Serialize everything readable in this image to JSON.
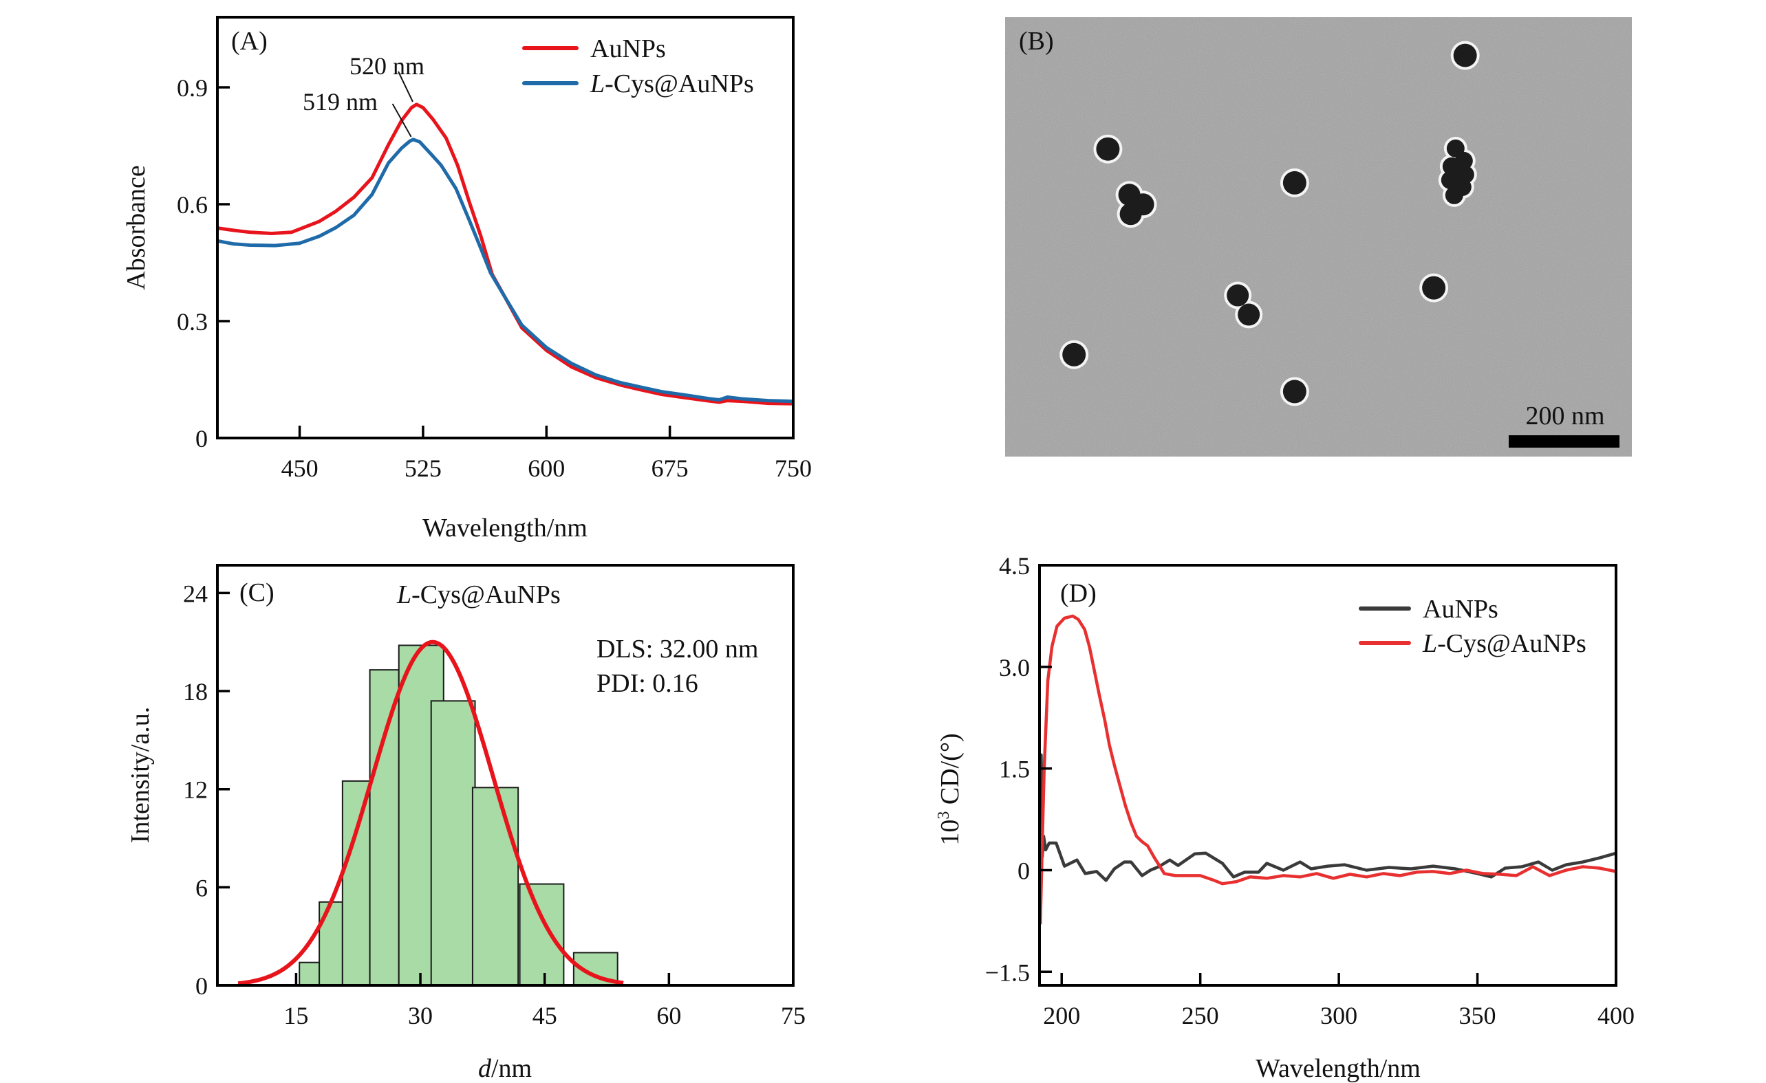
{
  "figure": {
    "panels": [
      "A",
      "B",
      "C",
      "D"
    ]
  },
  "chart_data": [
    {
      "id": "A",
      "type": "line",
      "panel_tag": "(A)",
      "title": "",
      "xlabel": "Wavelength/nm",
      "ylabel": "Absorbance",
      "xlim": [
        400,
        750
      ],
      "ylim": [
        0,
        1.08
      ],
      "xticks": [
        450,
        525,
        600,
        675,
        750
      ],
      "xtick_labels": [
        "450",
        "525",
        "600",
        "675",
        "750"
      ],
      "yticks": [
        0,
        0.3,
        0.6,
        0.9
      ],
      "ytick_labels": [
        "0",
        "0.3",
        "0.6",
        "0.9"
      ],
      "grid": false,
      "legend_position": "top-right",
      "series": [
        {
          "name": "AuNPs",
          "name_italic_prefix": "",
          "name_rest": "AuNPs",
          "color": "#e8141c",
          "x": [
            400,
            410,
            420,
            433,
            445,
            462,
            472,
            483,
            494,
            504,
            512,
            518,
            521,
            525,
            531,
            539,
            546,
            553,
            560,
            567,
            575,
            585,
            600,
            615,
            630,
            645,
            657,
            670,
            685,
            699,
            705,
            710,
            720,
            735,
            750
          ],
          "y": [
            0.539,
            0.533,
            0.528,
            0.525,
            0.528,
            0.556,
            0.582,
            0.618,
            0.668,
            0.753,
            0.815,
            0.848,
            0.856,
            0.848,
            0.818,
            0.77,
            0.7,
            0.607,
            0.52,
            0.42,
            0.36,
            0.283,
            0.225,
            0.183,
            0.155,
            0.136,
            0.124,
            0.112,
            0.103,
            0.095,
            0.092,
            0.096,
            0.094,
            0.089,
            0.088
          ]
        },
        {
          "name": "L-Cys@AuNPs",
          "name_italic_prefix": "L",
          "name_rest": "-Cys@AuNPs",
          "color": "#1f6aa8",
          "x": [
            400,
            410,
            420,
            435,
            450,
            462,
            472,
            483,
            494,
            504,
            512,
            517,
            519,
            523,
            530,
            536,
            545,
            553,
            560,
            566,
            575,
            585,
            600,
            615,
            630,
            645,
            657,
            670,
            685,
            699,
            705,
            710,
            720,
            735,
            750
          ],
          "y": [
            0.506,
            0.498,
            0.495,
            0.494,
            0.5,
            0.518,
            0.54,
            0.572,
            0.625,
            0.706,
            0.744,
            0.762,
            0.766,
            0.76,
            0.728,
            0.7,
            0.64,
            0.56,
            0.488,
            0.424,
            0.36,
            0.29,
            0.232,
            0.192,
            0.162,
            0.142,
            0.131,
            0.119,
            0.11,
            0.101,
            0.098,
            0.105,
            0.1,
            0.096,
            0.094
          ]
        }
      ],
      "annotations": [
        {
          "text": "520 nm",
          "x": 520,
          "y": 0.856
        },
        {
          "text": "519 nm",
          "x": 519,
          "y": 0.766
        }
      ]
    },
    {
      "id": "B",
      "type": "image",
      "panel_tag": "(B)",
      "description": "TEM micrograph of nanoparticles",
      "scale_bar_label": "200 nm",
      "particles": [
        {
          "fx": 0.164,
          "fy": 0.3,
          "count": 1
        },
        {
          "fx": 0.734,
          "fy": 0.087,
          "count": 1
        },
        {
          "fx": 0.462,
          "fy": 0.377,
          "count": 1
        },
        {
          "fx": 0.207,
          "fy": 0.423,
          "count": 3
        },
        {
          "fx": 0.721,
          "fy": 0.352,
          "count": 7
        },
        {
          "fx": 0.38,
          "fy": 0.655,
          "count": 2
        },
        {
          "fx": 0.684,
          "fy": 0.616,
          "count": 1
        },
        {
          "fx": 0.11,
          "fy": 0.768,
          "count": 1
        },
        {
          "fx": 0.462,
          "fy": 0.852,
          "count": 1
        }
      ]
    },
    {
      "id": "C",
      "type": "bar",
      "panel_tag": "(C)",
      "title": "L-Cys@AuNPs",
      "title_italic_prefix": "L",
      "title_rest": "-Cys@AuNPs",
      "xlabel_italic": "d",
      "xlabel_rest": "/nm",
      "ylabel": "Intensity/a.u.",
      "xlim": [
        5.5,
        75
      ],
      "ylim": [
        0,
        25.7
      ],
      "xticks": [
        15,
        30,
        45,
        60,
        75
      ],
      "xtick_labels": [
        "15",
        "30",
        "45",
        "60",
        "75"
      ],
      "yticks": [
        0,
        6,
        12,
        18,
        24
      ],
      "ytick_labels": [
        "0",
        "6",
        "12",
        "18",
        "24"
      ],
      "grid": false,
      "bar_color": "#a8dba6",
      "bar_edge_color": "#1a1a1a",
      "bins": [
        {
          "x0": 15.4,
          "x1": 17.8,
          "value": 1.4
        },
        {
          "x0": 17.8,
          "x1": 20.6,
          "value": 5.1
        },
        {
          "x0": 20.6,
          "x1": 23.9,
          "value": 12.5
        },
        {
          "x0": 23.9,
          "x1": 27.4,
          "value": 19.3
        },
        {
          "x0": 27.4,
          "x1": 32.8,
          "value": 20.8
        },
        {
          "x0": 31.3,
          "x1": 36.6,
          "value": 17.4
        },
        {
          "x0": 36.3,
          "x1": 41.8,
          "value": 12.1
        },
        {
          "x0": 42.0,
          "x1": 47.3,
          "value": 6.2
        },
        {
          "x0": 48.5,
          "x1": 53.8,
          "value": 2.0
        }
      ],
      "fit": {
        "type": "gaussian",
        "color": "#e8141c",
        "mean": 31.5,
        "sigma": 7.3,
        "amplitude": 21.0,
        "x_range": [
          8,
          54.5
        ]
      },
      "text_lines": [
        "DLS: 32.00 nm",
        "PDI: 0.16"
      ]
    },
    {
      "id": "D",
      "type": "line",
      "panel_tag": "(D)",
      "xlabel": "Wavelength/nm",
      "ylabel_prefix": "10",
      "ylabel_sup": "3",
      "ylabel_rest": " CD/(°)",
      "xlim": [
        192,
        400
      ],
      "ylim": [
        -1.7,
        4.5
      ],
      "xticks": [
        200,
        250,
        300,
        350,
        400
      ],
      "xtick_labels": [
        "200",
        "250",
        "300",
        "350",
        "400"
      ],
      "yticks": [
        -1.5,
        0,
        1.5,
        3.0,
        4.5
      ],
      "ytick_labels": [
        "−1.5",
        "0",
        "1.5",
        "3.0",
        "4.5"
      ],
      "grid": false,
      "legend_position": "top-right",
      "series": [
        {
          "name": "AuNPs",
          "name_italic_prefix": "",
          "name_rest": "AuNPs",
          "color": "#3a3a3a",
          "x": [
            192.2,
            192.6,
            193.0,
            193.5,
            194.2,
            195.5,
            198,
            201,
            205.5,
            208.5,
            212.6,
            216,
            219,
            222.6,
            225,
            229,
            232,
            235,
            239,
            242,
            248,
            252,
            258,
            262,
            266,
            271,
            274,
            280,
            286,
            290,
            296,
            302,
            310,
            318,
            326,
            334,
            342,
            350,
            355,
            360,
            366,
            372,
            377,
            382,
            388,
            394,
            400
          ],
          "y": [
            -0.6,
            1.7,
            0.2,
            0.5,
            0.3,
            0.4,
            0.4,
            0.06,
            0.15,
            -0.05,
            -0.02,
            -0.15,
            0.02,
            0.12,
            0.12,
            -0.08,
            0.0,
            0.05,
            0.15,
            0.07,
            0.24,
            0.25,
            0.1,
            -0.1,
            -0.03,
            -0.03,
            0.1,
            0.0,
            0.12,
            0.02,
            0.06,
            0.08,
            0.0,
            0.04,
            0.02,
            0.06,
            0.02,
            -0.05,
            -0.1,
            0.03,
            0.05,
            0.12,
            0.0,
            0.08,
            0.12,
            0.18,
            0.25
          ]
        },
        {
          "name": "L-Cys@AuNPs",
          "name_italic_prefix": "L",
          "name_rest": "-Cys@AuNPs",
          "color": "#e83030",
          "x": [
            192.3,
            193.0,
            193.7,
            195.0,
            196.5,
            198.3,
            201,
            204,
            206,
            208.3,
            210,
            211.5,
            213.5,
            215.6,
            217.2,
            219,
            221,
            223,
            225,
            227,
            229,
            231,
            233.5,
            235.5,
            237,
            241,
            246,
            250,
            255,
            258,
            263,
            268,
            274,
            280,
            286,
            292,
            298,
            304,
            310,
            316,
            322,
            328,
            334,
            340,
            346,
            352,
            358,
            364,
            370,
            376,
            382,
            388,
            394,
            400
          ],
          "y": [
            -0.8,
            0.4,
            1.5,
            2.8,
            3.3,
            3.6,
            3.72,
            3.75,
            3.7,
            3.55,
            3.3,
            3.0,
            2.6,
            2.2,
            1.85,
            1.55,
            1.25,
            0.95,
            0.7,
            0.5,
            0.42,
            0.36,
            0.18,
            0.05,
            -0.05,
            -0.08,
            -0.08,
            -0.08,
            -0.15,
            -0.2,
            -0.17,
            -0.1,
            -0.12,
            -0.08,
            -0.1,
            -0.05,
            -0.12,
            -0.06,
            -0.1,
            -0.05,
            -0.08,
            -0.03,
            -0.02,
            -0.05,
            0.0,
            -0.05,
            -0.06,
            -0.08,
            0.05,
            -0.08,
            0.0,
            0.05,
            0.03,
            -0.02
          ]
        }
      ]
    }
  ]
}
